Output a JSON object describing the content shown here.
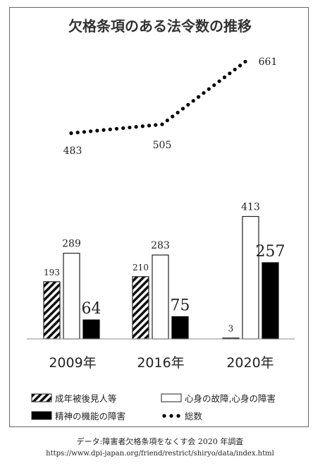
{
  "chart_data": {
    "type": "bar",
    "title": "欠格条項のある法令数の推移",
    "categories": [
      "2009年",
      "2016年",
      "2020年"
    ],
    "series": [
      {
        "name": "成年被後見人等",
        "kind": "bar",
        "pattern": "hatch",
        "values": [
          193,
          210,
          3
        ],
        "labels": [
          "193",
          "210",
          "3"
        ]
      },
      {
        "name": "心身の故障,心身の障害",
        "kind": "bar",
        "pattern": "white",
        "values": [
          289,
          283,
          413
        ],
        "labels": [
          "289",
          "283",
          "413"
        ]
      },
      {
        "name": "精神の機能の障害",
        "kind": "bar",
        "pattern": "black",
        "values": [
          64,
          75,
          257
        ],
        "labels": [
          "64",
          "75",
          "257"
        ]
      },
      {
        "name": "総数",
        "kind": "line",
        "style": "dotted",
        "values": [
          483,
          505,
          661
        ],
        "labels": [
          "483",
          "505",
          "661"
        ]
      }
    ],
    "legend_position": "bottom",
    "grid": false
  },
  "source": {
    "line1": "データ:障害者欠格条項をなくす会 2020 年調査",
    "line2": "https://www.dpi-japan.org/friend/restrict/shiryo/data/index.html"
  }
}
